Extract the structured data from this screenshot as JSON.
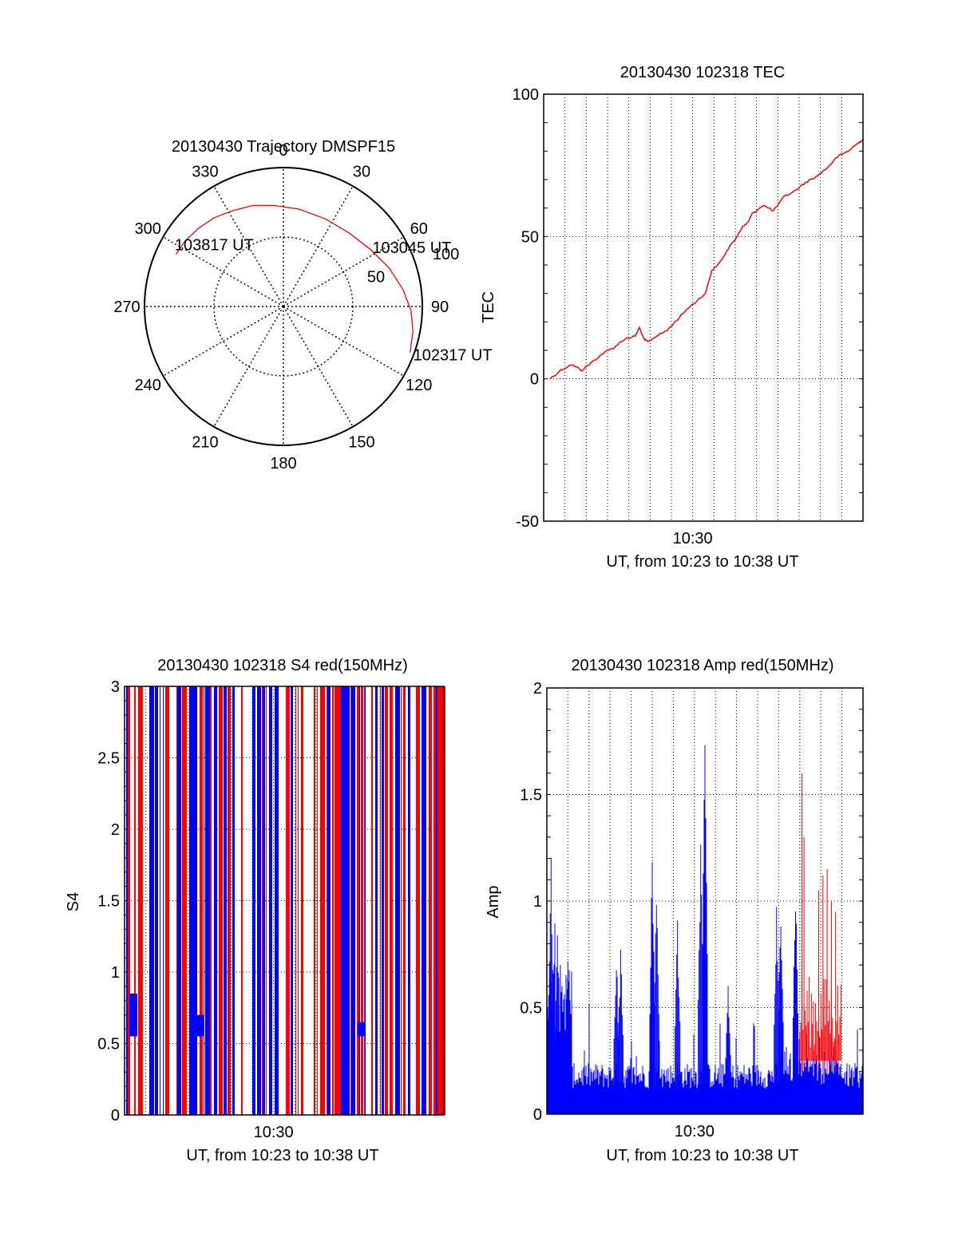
{
  "chart_data": [
    {
      "id": "trajectory",
      "type": "scatter",
      "subtype": "polar",
      "title": "20130430 Trajectory DMSPF15",
      "angle_labels": [
        "0",
        "30",
        "60",
        "90",
        "120",
        "150",
        "180",
        "210",
        "240",
        "270",
        "300",
        "330"
      ],
      "radius_labels": [
        "50",
        "100"
      ],
      "rlim": [
        0,
        100
      ],
      "grid": true,
      "track": {
        "color": "#ff0000",
        "points": [
          {
            "az": 296,
            "el": 14
          },
          {
            "az": 304,
            "el": 15
          },
          {
            "az": 313,
            "el": 17
          },
          {
            "az": 322,
            "el": 19
          },
          {
            "az": 332,
            "el": 22
          },
          {
            "az": 343,
            "el": 24
          },
          {
            "az": 355,
            "el": 27
          },
          {
            "az": 9,
            "el": 29
          },
          {
            "az": 26,
            "el": 30
          },
          {
            "az": 42,
            "el": 29
          },
          {
            "az": 57,
            "el": 25
          },
          {
            "az": 70,
            "el": 19
          },
          {
            "az": 82,
            "el": 13
          },
          {
            "az": 92,
            "el": 8
          },
          {
            "az": 101,
            "el": 5
          },
          {
            "az": 110,
            "el": 3
          }
        ]
      },
      "annotations": [
        {
          "text": "103817 UT",
          "az": 298,
          "el": 14
        },
        {
          "text": "103045 UT",
          "az": 57,
          "el": 25
        },
        {
          "text": "102317 UT",
          "az": 110,
          "el": 3
        }
      ]
    },
    {
      "id": "tec",
      "type": "line",
      "title": "20130430 102318 TEC",
      "xlabel": "UT, from 10:23 to 10:38 UT",
      "ylabel": "TEC",
      "xlim": [
        "10:23",
        "10:38"
      ],
      "ylim": [
        -50,
        100
      ],
      "yticks": [
        "-50",
        "0",
        "50",
        "100"
      ],
      "xticks": [
        "10:30"
      ],
      "grid": true,
      "series": [
        {
          "color": "#ff0000",
          "x_minutes_after_1023": [
            0.3,
            0.8,
            1.3,
            1.8,
            2.3,
            2.8,
            3.3,
            3.8,
            4.3,
            4.5,
            4.7,
            4.9,
            5.3,
            5.8,
            6.3,
            6.8,
            7.3,
            7.6,
            7.9,
            8.3,
            8.6,
            9.0,
            9.3,
            9.6,
            9.8,
            10.3,
            10.8,
            11.3,
            11.8,
            12.3,
            12.8,
            13.3,
            13.8,
            14.3,
            14.8,
            15.0
          ],
          "y": [
            0,
            3,
            5,
            3,
            6,
            9,
            11,
            14,
            15,
            18,
            14,
            13,
            15,
            17,
            21,
            25,
            28,
            30,
            38,
            41,
            45,
            49,
            53,
            55,
            58,
            61,
            59,
            64,
            66,
            69,
            71,
            74,
            78,
            80,
            83,
            84
          ]
        }
      ]
    },
    {
      "id": "s4",
      "type": "bar",
      "title": "20130430 102318 S4 red(150MHz)",
      "xlabel": "UT, from 10:23 to 10:38 UT",
      "ylabel": "S4",
      "xlim": [
        "10:23",
        "10:38"
      ],
      "ylim": [
        0,
        3
      ],
      "yticks": [
        "0",
        "0.5",
        "1",
        "1.5",
        "2",
        "2.5",
        "3"
      ],
      "xticks": [
        "10:30"
      ],
      "grid": true,
      "series": [
        {
          "name": "red",
          "color": "#ff0000"
        },
        {
          "name": "blue",
          "color": "#0000ff"
        }
      ]
    },
    {
      "id": "amp",
      "type": "bar",
      "title": "20130430 102318 Amp red(150MHz)",
      "xlabel": "UT, from 10:23 to 10:38 UT",
      "ylabel": "Amp",
      "xlim": [
        "10:23",
        "10:38"
      ],
      "ylim": [
        0,
        2
      ],
      "yticks": [
        "0",
        "0.5",
        "1",
        "1.5",
        "2"
      ],
      "xticks": [
        "10:30"
      ],
      "grid": true,
      "series": [
        {
          "name": "blue",
          "color": "#0000ff",
          "spikes": [
            {
              "x": 0.2,
              "y": 1.28
            },
            {
              "x": 0.5,
              "y": 0.9
            },
            {
              "x": 1.0,
              "y": 0.75
            },
            {
              "x": 3.3,
              "y": 0.8
            },
            {
              "x": 3.5,
              "y": 0.83
            },
            {
              "x": 5.0,
              "y": 1.25
            },
            {
              "x": 5.2,
              "y": 1.2
            },
            {
              "x": 6.2,
              "y": 0.95
            },
            {
              "x": 7.3,
              "y": 1.35
            },
            {
              "x": 7.5,
              "y": 1.8
            },
            {
              "x": 8.6,
              "y": 0.65
            },
            {
              "x": 10.9,
              "y": 1.0
            },
            {
              "x": 11.1,
              "y": 1.1
            },
            {
              "x": 11.8,
              "y": 1.15
            }
          ]
        },
        {
          "name": "red",
          "color": "#ff0000",
          "spikes": [
            {
              "x": 12.1,
              "y": 1.6
            },
            {
              "x": 12.2,
              "y": 1.3
            },
            {
              "x": 12.9,
              "y": 1.05
            },
            {
              "x": 13.1,
              "y": 1.12
            },
            {
              "x": 13.3,
              "y": 1.15
            },
            {
              "x": 13.5,
              "y": 1.0
            },
            {
              "x": 13.7,
              "y": 0.95
            }
          ]
        }
      ]
    }
  ]
}
